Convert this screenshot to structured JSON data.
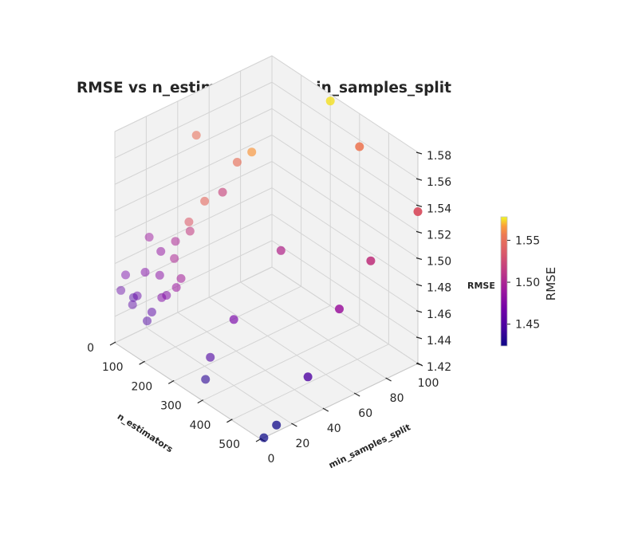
{
  "chart_data": {
    "type": "scatter",
    "projection": "3d",
    "title": "RMSE vs n_estimators and min_samples_split",
    "xlabel": "n_estimators",
    "ylabel": "min_samples_split",
    "zlabel": "RMSE",
    "xlim": [
      0,
      500
    ],
    "ylim": [
      0,
      100
    ],
    "zlim": [
      1.42,
      1.58
    ],
    "x_ticks": [
      "0",
      "100",
      "200",
      "300",
      "400",
      "500"
    ],
    "y_ticks": [
      "0",
      "20",
      "40",
      "60",
      "80",
      "100"
    ],
    "z_ticks": [
      "1.42",
      "1.44",
      "1.46",
      "1.48",
      "1.50",
      "1.52",
      "1.54",
      "1.56",
      "1.58"
    ],
    "grid": true,
    "colormap": "plasma",
    "colorbar": {
      "label": "RMSE",
      "ticks": [
        "1.45",
        "1.50",
        "1.55"
      ],
      "range": [
        1.424,
        1.578
      ]
    },
    "points": [
      {
        "x": 10,
        "y": 10,
        "z": 1.45
      },
      {
        "x": 10,
        "y": 2,
        "z": 1.46
      },
      {
        "x": 10,
        "y": 20,
        "z": 1.49
      },
      {
        "x": 10,
        "y": 5,
        "z": 1.47
      },
      {
        "x": 10,
        "y": 50,
        "z": 1.55
      },
      {
        "x": 50,
        "y": 2,
        "z": 1.455
      },
      {
        "x": 50,
        "y": 5,
        "z": 1.46
      },
      {
        "x": 50,
        "y": 10,
        "z": 1.475
      },
      {
        "x": 50,
        "y": 20,
        "z": 1.485
      },
      {
        "x": 100,
        "y": 2,
        "z": 1.45
      },
      {
        "x": 100,
        "y": 5,
        "z": 1.455
      },
      {
        "x": 100,
        "y": 10,
        "z": 1.48
      },
      {
        "x": 100,
        "y": 20,
        "z": 1.5
      },
      {
        "x": 100,
        "y": 50,
        "z": 1.52
      },
      {
        "x": 150,
        "y": 2,
        "z": 1.475
      },
      {
        "x": 150,
        "y": 5,
        "z": 1.475
      },
      {
        "x": 150,
        "y": 10,
        "z": 1.5
      },
      {
        "x": 150,
        "y": 20,
        "z": 1.515
      },
      {
        "x": 150,
        "y": 50,
        "z": 1.55
      },
      {
        "x": 200,
        "y": 2,
        "z": 1.49
      },
      {
        "x": 200,
        "y": 5,
        "z": 1.495
      },
      {
        "x": 200,
        "y": 10,
        "z": 1.535
      },
      {
        "x": 200,
        "y": 20,
        "z": 1.545
      },
      {
        "x": 200,
        "y": 50,
        "z": 1.565
      },
      {
        "x": 200,
        "y": 100,
        "z": 1.575
      },
      {
        "x": 300,
        "y": 2,
        "z": 1.435
      },
      {
        "x": 300,
        "y": 5,
        "z": 1.45
      },
      {
        "x": 300,
        "y": 20,
        "z": 1.47
      },
      {
        "x": 300,
        "y": 50,
        "z": 1.505
      },
      {
        "x": 300,
        "y": 100,
        "z": 1.555
      },
      {
        "x": 500,
        "y": 2,
        "z": 1.42
      },
      {
        "x": 500,
        "y": 10,
        "z": 1.425
      },
      {
        "x": 500,
        "y": 30,
        "z": 1.45
      },
      {
        "x": 500,
        "y": 50,
        "z": 1.49
      },
      {
        "x": 500,
        "y": 70,
        "z": 1.515
      },
      {
        "x": 500,
        "y": 100,
        "z": 1.535
      }
    ]
  }
}
